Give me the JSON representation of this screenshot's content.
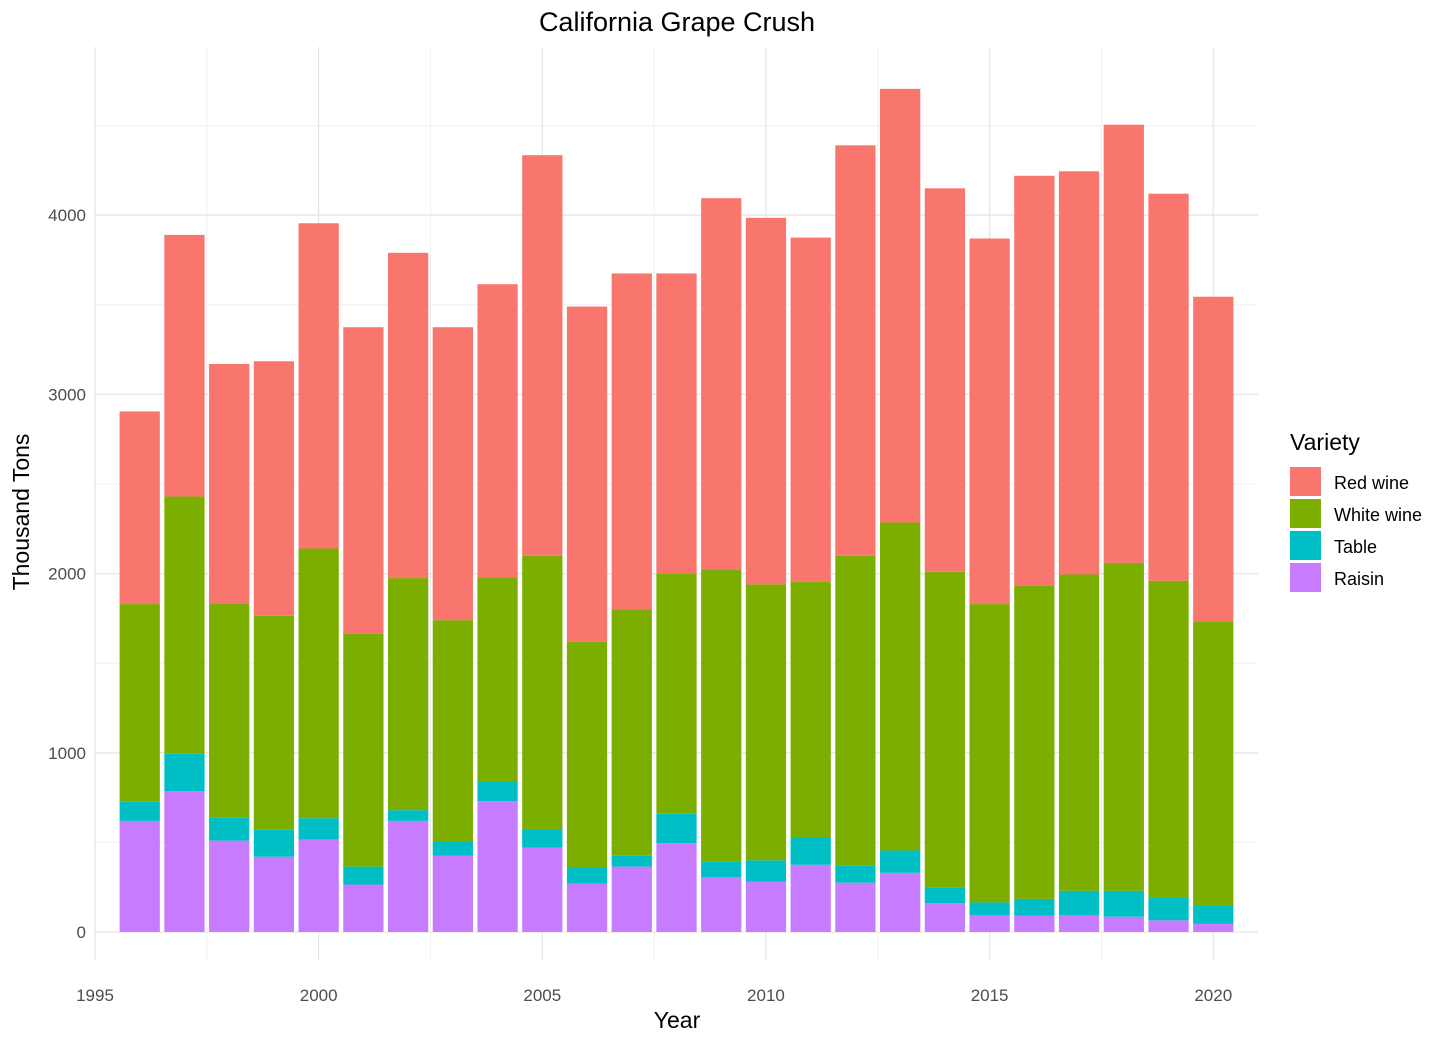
{
  "chart_data": {
    "type": "bar",
    "stacked": true,
    "title": "California Grape Crush",
    "xlabel": "Year",
    "ylabel": "Thousand Tons",
    "xlim": [
      1995,
      2021
    ],
    "ylim": [
      0,
      5000
    ],
    "x_ticks": [
      1995,
      2000,
      2005,
      2010,
      2015,
      2020
    ],
    "y_ticks": [
      0,
      1000,
      2000,
      3000,
      4000
    ],
    "grid": true,
    "legend": {
      "title": "Variety",
      "placement": "right"
    },
    "categories": [
      1996,
      1997,
      1998,
      1999,
      2000,
      2001,
      2002,
      2003,
      2004,
      2005,
      2006,
      2007,
      2008,
      2009,
      2010,
      2011,
      2012,
      2013,
      2014,
      2015,
      2016,
      2017,
      2018,
      2019,
      2020
    ],
    "series": [
      {
        "name": "Raisin",
        "color": "#C77CFF",
        "values": [
          620,
          785,
          510,
          420,
          515,
          265,
          620,
          425,
          730,
          470,
          270,
          365,
          495,
          305,
          280,
          375,
          275,
          330,
          160,
          95,
          90,
          95,
          85,
          65,
          45
        ]
      },
      {
        "name": "Table",
        "color": "#00BFC4",
        "values": [
          110,
          210,
          130,
          150,
          120,
          100,
          60,
          80,
          110,
          105,
          90,
          60,
          165,
          90,
          120,
          155,
          95,
          125,
          90,
          70,
          95,
          135,
          145,
          130,
          100
        ]
      },
      {
        "name": "White wine",
        "color": "#7CAE00",
        "values": [
          1100,
          1435,
          1195,
          1195,
          1505,
          1300,
          1295,
          1235,
          1140,
          1525,
          1260,
          1375,
          1340,
          1625,
          1540,
          1425,
          1730,
          1830,
          1760,
          1665,
          1750,
          1765,
          1830,
          1765,
          1585
        ]
      },
      {
        "name": "Red wine",
        "color": "#F8766D",
        "values": [
          1075,
          1460,
          1335,
          1420,
          1815,
          1710,
          1815,
          1635,
          1635,
          2235,
          1870,
          1875,
          1675,
          2075,
          2045,
          1920,
          2290,
          2420,
          2140,
          2040,
          2285,
          2250,
          2445,
          2160,
          1815
        ]
      }
    ],
    "legend_order": [
      "Red wine",
      "White wine",
      "Table",
      "Raisin"
    ]
  }
}
